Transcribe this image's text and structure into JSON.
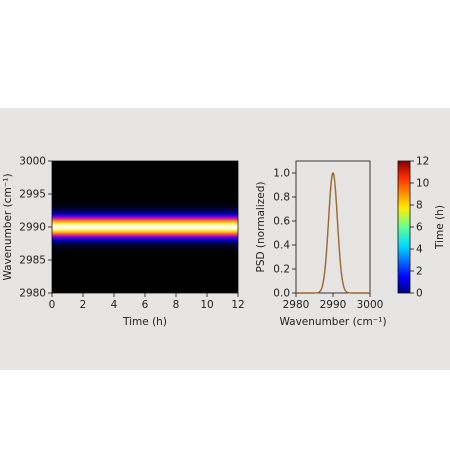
{
  "colors": {
    "band_background": "#e7e4e4",
    "heatmap_background": "#000000",
    "psd_line": "#a8552a"
  },
  "chart_data": [
    {
      "type": "heatmap",
      "title": "",
      "xlabel": "Time (h)",
      "ylabel": "Wavenumber (cm⁻¹)",
      "xlim": [
        0,
        12
      ],
      "ylim": [
        2980,
        3000
      ],
      "x_ticks": [
        "0",
        "2",
        "4",
        "6",
        "8",
        "10",
        "12"
      ],
      "y_ticks": [
        "2980",
        "2985",
        "2990",
        "2995",
        "3000"
      ],
      "colormap": "gnuplot2",
      "band_center": 2990,
      "band_sigma": 1.2,
      "grid": false
    },
    {
      "type": "line",
      "title": "",
      "xlabel": "Wavenumber (cm⁻¹)",
      "ylabel": "PSD (normalized)",
      "xlim": [
        2980,
        3000
      ],
      "ylim": [
        0,
        1.1
      ],
      "x_ticks": [
        "2980",
        "2990",
        "3000"
      ],
      "y_ticks": [
        "0.0",
        "0.2",
        "0.4",
        "0.6",
        "0.8",
        "1.0"
      ],
      "peak_x": 2990,
      "peak_y": 1.0,
      "sigma": 1.2,
      "grid": false
    },
    {
      "type": "colorbar",
      "label": "Time (h)",
      "range": [
        0,
        12
      ],
      "ticks": [
        "0",
        "2",
        "4",
        "6",
        "8",
        "10",
        "12"
      ],
      "colormap": "jet"
    }
  ]
}
